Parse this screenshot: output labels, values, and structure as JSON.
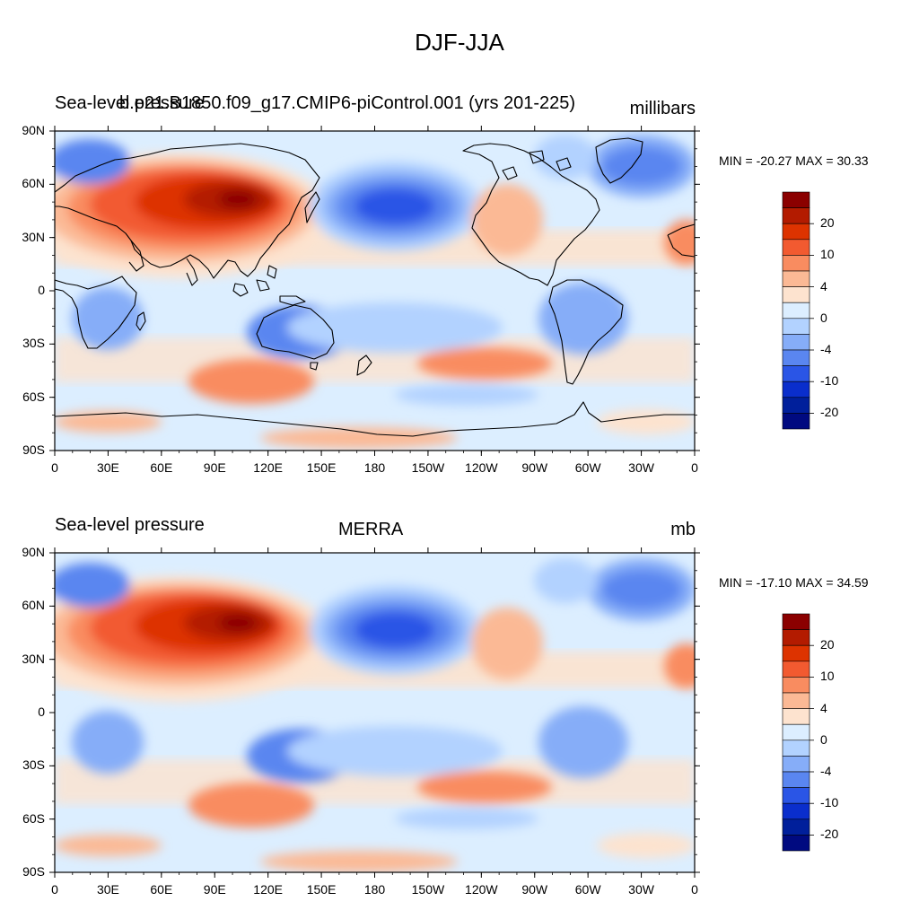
{
  "figure_title": "DJF-JJA",
  "panels": [
    {
      "left_string": "Sea-level pressure",
      "center_string": "b.e21.B1850.f09_g17.CMIP6-piControl.001 (yrs 201-225)",
      "right_string": "millibars",
      "min_max": "MIN = -20.27 MAX =  30.33"
    },
    {
      "left_string": "Sea-level pressure",
      "center_string": "MERRA",
      "right_string": "mb",
      "min_max": "MIN = -17.10 MAX =  34.59"
    }
  ],
  "x_ticks": [
    "0",
    "30E",
    "60E",
    "90E",
    "120E",
    "150E",
    "180",
    "150W",
    "120W",
    "90W",
    "60W",
    "30W",
    "0"
  ],
  "y_ticks": [
    "90N",
    "60N",
    "30N",
    "0",
    "30S",
    "60S",
    "90S"
  ],
  "colorbar": {
    "labels": [
      "20",
      "10",
      "4",
      "0",
      "-4",
      "-10",
      "-20"
    ],
    "colors": [
      "#8b0000",
      "#b31b00",
      "#dd3300",
      "#f25a30",
      "#f98c60",
      "#fbb995",
      "#fde3cf",
      "#dceeff",
      "#b2d2ff",
      "#86adf8",
      "#5a86f0",
      "#2a55e6",
      "#0a2ecc",
      "#001f9b",
      "#000a80"
    ]
  }
}
